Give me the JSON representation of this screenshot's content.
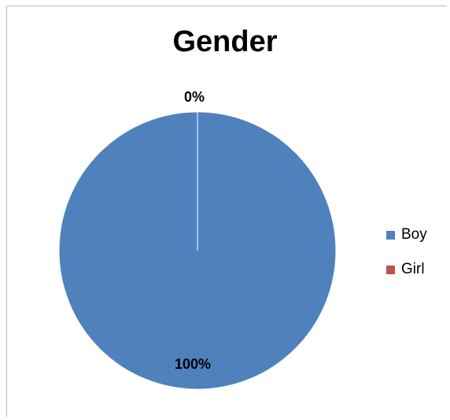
{
  "chart_data": {
    "type": "pie",
    "title": "Gender",
    "categories": [
      "Boy",
      "Girl"
    ],
    "values": [
      100,
      0
    ],
    "value_labels": [
      "100%",
      "0%"
    ],
    "colors": [
      "#4f81bd",
      "#c0504d"
    ],
    "legend_position": "right"
  }
}
